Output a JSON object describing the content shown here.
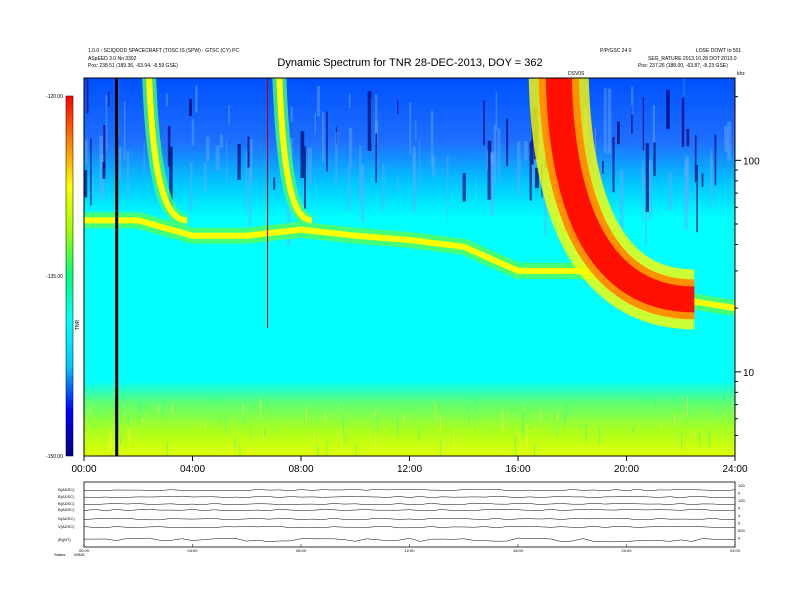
{
  "header": {
    "top_left_line1": "1.0.0 - SCIQOOD SPACECRAFT (TOSC IS (SPW) - GTSC (CY) PC",
    "top_left_line2": "ASpEED 3.0 No 3302",
    "top_left_line3": "Pos: 238.51 (189.36, -63.94, -8.59 GSE)",
    "top_right_line1": "P/P/GSC 24 0",
    "top_right_line2": "LOSE DOWT to 501",
    "top_right_line3": "SEG_RATURE 2013.10.28 DOT 2013.0",
    "top_right_line4": "Pos: 237.26 (188.00, -63.87, -8.23 GSE)",
    "marker_label": "DSV0S",
    "corner_label": "khz"
  },
  "chart_data": {
    "type": "heatmap",
    "title": "Dynamic Spectrum for TNR 28-DEC-2013, DOY = 362",
    "x_ticks": [
      "00:00",
      "04:00",
      "08:00",
      "12:00",
      "16:00",
      "20:00",
      "24:00"
    ],
    "x_range_hours": [
      0,
      24
    ],
    "y_ticks_right": [
      "100",
      "10"
    ],
    "y_scale": "log",
    "y_range_khz": [
      4,
      245
    ],
    "colorbar": {
      "ticks": [
        "-120.00",
        "-135.00",
        "-150.00"
      ],
      "range": [
        -150,
        -120
      ],
      "label": "TNR",
      "colors": [
        "#000080",
        "#0000ff",
        "#00c8ff",
        "#00ffff",
        "#00ff80",
        "#a0ff00",
        "#ffff00",
        "#ff8000",
        "#ff0000"
      ]
    },
    "features": [
      {
        "name": "type III burst",
        "start_hour": 2.4,
        "end_hour": 3.8
      },
      {
        "name": "type III burst",
        "start_hour": 7.2,
        "end_hour": 8.4
      },
      {
        "name": "type III burst",
        "start_hour": 17.5,
        "end_hour": 22.5
      }
    ],
    "plasma_line_khz": [
      [
        0,
        52
      ],
      [
        2,
        52
      ],
      [
        4,
        44
      ],
      [
        6,
        44
      ],
      [
        8,
        47
      ],
      [
        10,
        44
      ],
      [
        12,
        42
      ],
      [
        14,
        39
      ],
      [
        16,
        30
      ],
      [
        18,
        30
      ],
      [
        20,
        29
      ],
      [
        22,
        22
      ],
      [
        24,
        20
      ]
    ]
  },
  "aux_panel": {
    "left_labels": [
      "B(ADSC)",
      "B(ADSC)",
      "B(ADSC)",
      "B(ADSC)",
      "N(ADSC)",
      "V(ADSC)",
      "|B|(NT)"
    ],
    "right_labels": [
      "100",
      "0",
      "100",
      "0",
      "4",
      "0",
      "500",
      "0"
    ],
    "x_ticks": [
      "00:00",
      "04:00",
      "08:00",
      "12:00",
      "16:00",
      "20:00",
      "24:00"
    ],
    "footer_label": "Status",
    "footer_value": "WIND"
  }
}
